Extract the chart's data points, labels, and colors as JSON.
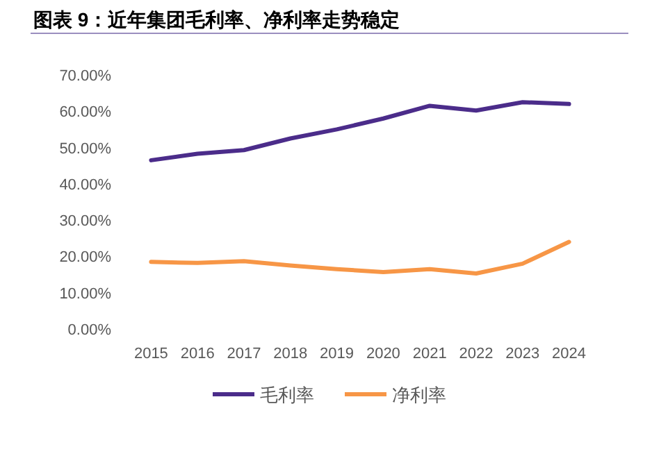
{
  "chart_data": {
    "type": "line",
    "title": "图表 9：近年集团毛利率、净利率走势稳定",
    "categories": [
      "2015",
      "2016",
      "2017",
      "2018",
      "2019",
      "2020",
      "2021",
      "2022",
      "2023",
      "2024"
    ],
    "series": [
      {
        "name": "毛利率",
        "color": "#4b2c8a",
        "values": [
          46.5,
          48.3,
          49.3,
          52.5,
          55,
          58,
          61.5,
          60.2,
          62.5,
          62
        ]
      },
      {
        "name": "净利率",
        "color": "#f79646",
        "values": [
          18.5,
          18.2,
          18.7,
          17.5,
          16.5,
          15.7,
          16.5,
          15.3,
          18,
          24
        ]
      }
    ],
    "ylim": [
      0,
      70
    ],
    "yticks": [
      {
        "value": 0,
        "label": "0.00%"
      },
      {
        "value": 10,
        "label": "10.00%"
      },
      {
        "value": 20,
        "label": "20.00%"
      },
      {
        "value": 30,
        "label": "30.00%"
      },
      {
        "value": 40,
        "label": "40.00%"
      },
      {
        "value": 50,
        "label": "50.00%"
      },
      {
        "value": 60,
        "label": "60.00%"
      },
      {
        "value": 70,
        "label": "70.00%"
      }
    ],
    "legend": "bottom",
    "grid": false,
    "marker": "none",
    "line_style": "solid"
  }
}
